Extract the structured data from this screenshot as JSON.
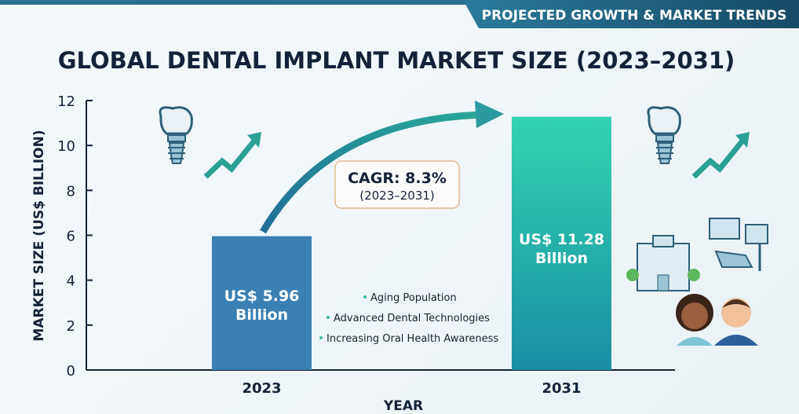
{
  "banner": "PROJECTED GROWTH & MARKET TRENDS",
  "colors": {
    "bar_2023": "#3a80b5",
    "bar_2031_top": "#32d4b2",
    "bar_2031_bottom": "#1a8ea3",
    "title": "#14213a",
    "banner": "#1e5d7a",
    "bullet": "#3fbf9f"
  },
  "cagr": {
    "label": "CAGR: 8.3%",
    "period": "(2023–2031)"
  },
  "drivers": [
    "Aging Population",
    "Advanced Dental Technologies",
    "Increasing Oral Health Awareness"
  ],
  "chart_data": {
    "type": "bar",
    "title": "GLOBAL DENTAL IMPLANT MARKET SIZE (2023–2031)",
    "xlabel": "YEAR",
    "ylabel": "MARKET SIZE (US$ BILLION)",
    "categories": [
      "2023",
      "2031"
    ],
    "values": [
      5.96,
      11.28
    ],
    "data_labels": [
      [
        "US$ 5.96",
        "Billion"
      ],
      [
        "US$ 11.28",
        "Billion"
      ]
    ],
    "ylim": [
      0,
      12
    ],
    "yticks": [
      0,
      2,
      4,
      6,
      8,
      10,
      12
    ],
    "grid": false
  }
}
